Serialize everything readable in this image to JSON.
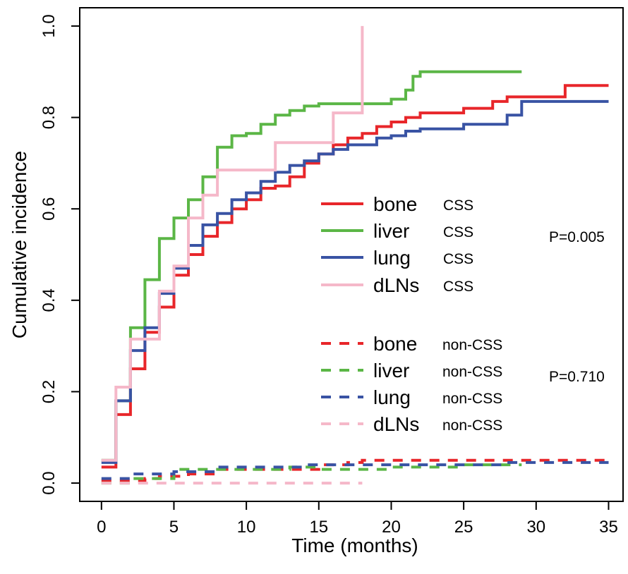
{
  "chart_data": {
    "type": "line",
    "title": "",
    "xlabel": "Time (months)",
    "ylabel": "Cumulative incidence",
    "xlim": [
      -1.5,
      36
    ],
    "ylim": [
      -0.04,
      1.04
    ],
    "xticks": [
      0,
      5,
      10,
      15,
      20,
      25,
      30,
      35
    ],
    "xtick_labels": [
      "0",
      "5",
      "10",
      "15",
      "20",
      "25",
      "30",
      "35"
    ],
    "yticks": [
      0.0,
      0.2,
      0.4,
      0.6,
      0.8,
      1.0
    ],
    "ytick_labels": [
      "0.0",
      "0.2",
      "0.4",
      "0.6",
      "0.8",
      "1.0"
    ],
    "grid": false,
    "legend_position": "center-right",
    "series": [
      {
        "name": "bone",
        "group": "CSS",
        "color": "#e8262a",
        "dash": false,
        "points": [
          [
            0,
            0.035
          ],
          [
            1,
            0.15
          ],
          [
            2,
            0.25
          ],
          [
            3,
            0.33
          ],
          [
            4,
            0.385
          ],
          [
            5,
            0.455
          ],
          [
            6,
            0.5
          ],
          [
            7,
            0.54
          ],
          [
            8,
            0.57
          ],
          [
            9,
            0.6
          ],
          [
            10,
            0.62
          ],
          [
            11,
            0.645
          ],
          [
            12,
            0.65
          ],
          [
            13,
            0.67
          ],
          [
            14,
            0.7
          ],
          [
            15,
            0.72
          ],
          [
            16,
            0.74
          ],
          [
            17,
            0.755
          ],
          [
            18,
            0.765
          ],
          [
            19,
            0.78
          ],
          [
            20,
            0.79
          ],
          [
            21,
            0.8
          ],
          [
            22,
            0.81
          ],
          [
            25,
            0.82
          ],
          [
            27,
            0.835
          ],
          [
            28,
            0.845
          ],
          [
            32,
            0.87
          ],
          [
            35,
            0.87
          ]
        ]
      },
      {
        "name": "liver",
        "group": "CSS",
        "color": "#5bb646",
        "dash": false,
        "points": [
          [
            0,
            0.05
          ],
          [
            1,
            0.18
          ],
          [
            2,
            0.34
          ],
          [
            3,
            0.445
          ],
          [
            4,
            0.535
          ],
          [
            5,
            0.58
          ],
          [
            6,
            0.62
          ],
          [
            7,
            0.67
          ],
          [
            8,
            0.735
          ],
          [
            9,
            0.76
          ],
          [
            10,
            0.765
          ],
          [
            11,
            0.785
          ],
          [
            12,
            0.805
          ],
          [
            13,
            0.815
          ],
          [
            14,
            0.825
          ],
          [
            15,
            0.83
          ],
          [
            20,
            0.84
          ],
          [
            21,
            0.86
          ],
          [
            21.5,
            0.89
          ],
          [
            22,
            0.9
          ],
          [
            29,
            0.9
          ]
        ]
      },
      {
        "name": "lung",
        "group": "CSS",
        "color": "#3953a4",
        "dash": false,
        "points": [
          [
            0,
            0.045
          ],
          [
            1,
            0.18
          ],
          [
            2,
            0.29
          ],
          [
            3,
            0.34
          ],
          [
            4,
            0.415
          ],
          [
            5,
            0.47
          ],
          [
            6,
            0.52
          ],
          [
            7,
            0.565
          ],
          [
            8,
            0.59
          ],
          [
            9,
            0.62
          ],
          [
            10,
            0.635
          ],
          [
            11,
            0.66
          ],
          [
            12,
            0.68
          ],
          [
            13,
            0.695
          ],
          [
            14,
            0.705
          ],
          [
            15,
            0.72
          ],
          [
            16,
            0.73
          ],
          [
            17,
            0.74
          ],
          [
            19,
            0.755
          ],
          [
            20,
            0.76
          ],
          [
            21,
            0.77
          ],
          [
            22,
            0.775
          ],
          [
            25,
            0.785
          ],
          [
            28,
            0.805
          ],
          [
            29,
            0.835
          ],
          [
            35,
            0.835
          ]
        ]
      },
      {
        "name": "dLNs",
        "group": "CSS",
        "color": "#f5b8c9",
        "dash": false,
        "points": [
          [
            0,
            0.05
          ],
          [
            1,
            0.21
          ],
          [
            2,
            0.315
          ],
          [
            4,
            0.42
          ],
          [
            5,
            0.475
          ],
          [
            6,
            0.58
          ],
          [
            7,
            0.63
          ],
          [
            8,
            0.685
          ],
          [
            12,
            0.745
          ],
          [
            16,
            0.81
          ],
          [
            18,
            1.0
          ]
        ]
      },
      {
        "name": "bone",
        "group": "non-CSS",
        "color": "#e8262a",
        "dash": true,
        "points": [
          [
            0,
            0.005
          ],
          [
            3,
            0.01
          ],
          [
            4,
            0.015
          ],
          [
            6,
            0.02
          ],
          [
            8,
            0.03
          ],
          [
            15,
            0.04
          ],
          [
            17,
            0.045
          ],
          [
            18,
            0.05
          ],
          [
            35,
            0.05
          ]
        ]
      },
      {
        "name": "liver",
        "group": "non-CSS",
        "color": "#5bb646",
        "dash": true,
        "points": [
          [
            0,
            0
          ],
          [
            2,
            0.01
          ],
          [
            5,
            0.03
          ],
          [
            8,
            0.03
          ],
          [
            13,
            0.035
          ],
          [
            15,
            0.03
          ],
          [
            20,
            0.035
          ],
          [
            25,
            0.04
          ],
          [
            29,
            0.04
          ]
        ]
      },
      {
        "name": "lung",
        "group": "non-CSS",
        "color": "#3953a4",
        "dash": true,
        "points": [
          [
            0,
            0.01
          ],
          [
            2,
            0.02
          ],
          [
            5,
            0.025
          ],
          [
            8,
            0.035
          ],
          [
            14,
            0.04
          ],
          [
            16,
            0.04
          ],
          [
            25,
            0.04
          ],
          [
            28,
            0.045
          ],
          [
            35,
            0.045
          ]
        ]
      },
      {
        "name": "dLNs",
        "group": "non-CSS",
        "color": "#f5b8c9",
        "dash": true,
        "points": [
          [
            0,
            0
          ],
          [
            18,
            0
          ]
        ]
      }
    ],
    "annotations": [
      {
        "text": "P=0.005",
        "group": "CSS"
      },
      {
        "text": "P=0.710",
        "group": "non-CSS"
      }
    ]
  }
}
